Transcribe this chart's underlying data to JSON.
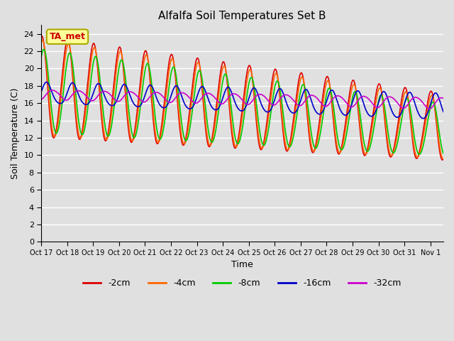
{
  "title": "Alfalfa Soil Temperatures Set B",
  "xlabel": "Time",
  "ylabel": "Soil Temperature (C)",
  "ylim": [
    0,
    25
  ],
  "yticks": [
    0,
    2,
    4,
    6,
    8,
    10,
    12,
    14,
    16,
    18,
    20,
    22,
    24
  ],
  "background_color": "#e0e0e0",
  "plot_bg_color": "#e0e0e0",
  "grid_color": "white",
  "annotation_text": "TA_met",
  "annotation_bg": "#ffff99",
  "annotation_border": "#aaaa00",
  "series_keys": [
    "-2cm",
    "-4cm",
    "-8cm",
    "-16cm",
    "-32cm"
  ],
  "series_colors": [
    "#dd0000",
    "#ff6600",
    "#00cc00",
    "#0000cc",
    "#cc00cc"
  ],
  "series_lw": [
    1.2,
    1.2,
    1.2,
    1.2,
    1.2
  ],
  "x_tick_labels": [
    "Oct 17",
    "Oct 18",
    "Oct 19",
    "Oct 20",
    "Oct 21",
    "Oct 22",
    "Oct 23",
    "Oct 24",
    "Oct 25",
    "Oct 26",
    "Oct 27",
    "Oct 28",
    "Oct 29",
    "Oct 30",
    "Oct 31",
    "Nov 1"
  ],
  "n_days": 15.5,
  "points_per_day": 48
}
